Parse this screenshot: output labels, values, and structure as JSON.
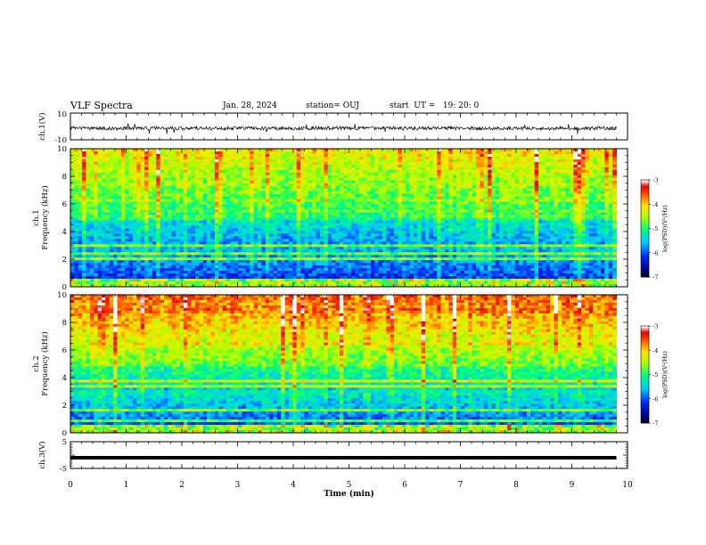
{
  "header": {
    "title": "VLF Spectra",
    "date": "Jan. 28, 2024",
    "station": "station= OUJ",
    "start": "start  UT =   19: 20: 0"
  },
  "chart_data": [
    {
      "type": "line",
      "panel": "ch1-waveform",
      "ylabel": "ch.1(V)",
      "ylim": [
        -10,
        10
      ],
      "yticks": [
        "10",
        "-10"
      ],
      "xlim": [
        0,
        10
      ],
      "color": "#000000"
    },
    {
      "type": "heatmap",
      "panel": "ch1-spectrogram",
      "ylabel_line1": "ch.1",
      "ylabel_line2": "Frequency (kHz)",
      "ylim": [
        0,
        10
      ],
      "yticks": [
        "0",
        "2",
        "4",
        "6",
        "8",
        "10"
      ],
      "xlim": [
        0,
        10
      ],
      "colorbar": {
        "label": "log(PSD)(V²/Hz)",
        "range": [
          -7,
          -3
        ],
        "ticks": [
          "-3",
          "-4",
          "-5",
          "-6",
          "-7"
        ]
      }
    },
    {
      "type": "heatmap",
      "panel": "ch2-spectrogram",
      "ylabel_line1": "ch.2",
      "ylabel_line2": "Frequency (kHz)",
      "ylim": [
        0,
        10
      ],
      "yticks": [
        "0",
        "2",
        "4",
        "6",
        "8",
        "10"
      ],
      "xlim": [
        0,
        10
      ],
      "colorbar": {
        "label": "log(PSD)(V²/Hz)",
        "range": [
          -7,
          -3
        ],
        "ticks": [
          "-3",
          "-4",
          "-5",
          "-6",
          "-7"
        ]
      }
    },
    {
      "type": "line",
      "panel": "ch3-waveform",
      "ylabel": "ch.3(V)",
      "ylim": [
        -5,
        5
      ],
      "yticks": [
        "5",
        "0",
        "-5"
      ],
      "xlim": [
        0,
        10
      ],
      "values": [
        -1,
        -1
      ],
      "x": [
        0,
        9.8
      ],
      "color": "#000000"
    }
  ],
  "xaxis": {
    "label": "Time (min)",
    "ticks": [
      "0",
      "1",
      "2",
      "3",
      "4",
      "5",
      "6",
      "7",
      "8",
      "9",
      "10"
    ],
    "data_extent": 9.8
  }
}
